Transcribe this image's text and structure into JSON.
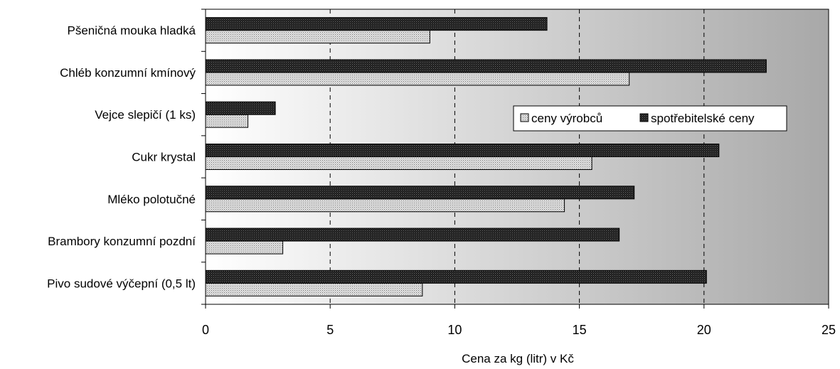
{
  "chart_data": {
    "type": "bar",
    "orientation": "horizontal",
    "categories": [
      "Pšeničná mouka hladká",
      "Chléb konzumní kmínový",
      "Vejce slepičí (1 ks)",
      "Cukr krystal",
      "Mléko polotučné",
      "Brambory konzumní pozdní",
      "Pivo sudové výčepní (0,5 lt)"
    ],
    "series": [
      {
        "name": "ceny výrobců",
        "values": [
          9.0,
          17.0,
          1.7,
          15.5,
          14.4,
          3.1,
          8.7
        ],
        "color": "#c8c8c8"
      },
      {
        "name": "spotřebitelské ceny",
        "values": [
          13.7,
          22.5,
          2.8,
          20.6,
          17.2,
          16.6,
          20.1
        ],
        "color": "#222222"
      }
    ],
    "xlabel": "Cena za kg (litr) v Kč",
    "ylabel": "",
    "xlim": [
      0,
      25
    ],
    "xticks": [
      "0",
      "5",
      "10",
      "15",
      "20",
      "25"
    ],
    "grid": "vertical dashed",
    "legend_position": "center-right",
    "background": "gradient white to gray"
  }
}
